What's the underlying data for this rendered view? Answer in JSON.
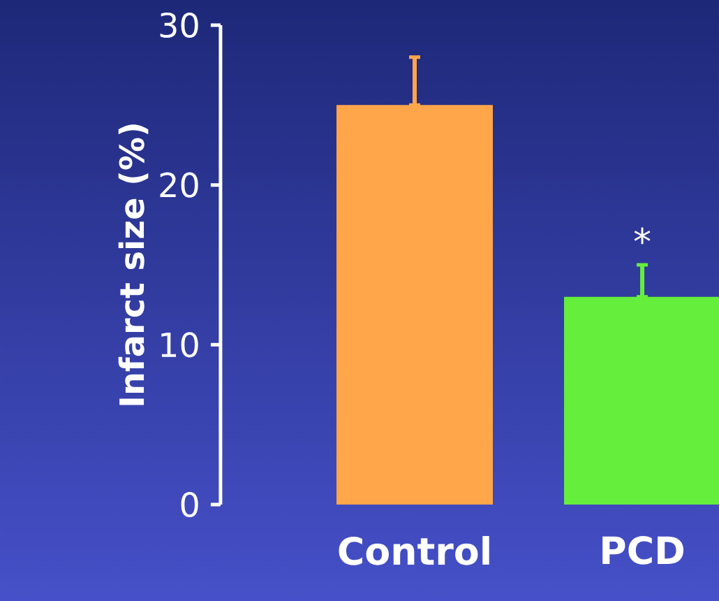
{
  "chart_data": {
    "type": "bar",
    "ylabel": "Infarct size (%)",
    "categories": [
      "Control",
      "PCD"
    ],
    "values": [
      25,
      13
    ],
    "colors": [
      "#ffa64a",
      "#66ee3c"
    ],
    "errors": [
      [
        25,
        28
      ],
      [
        13,
        15
      ]
    ],
    "ylim": [
      0,
      30
    ],
    "yticks": [
      0,
      10,
      20,
      30
    ],
    "grid": false,
    "annotations": [
      "*"
    ]
  }
}
